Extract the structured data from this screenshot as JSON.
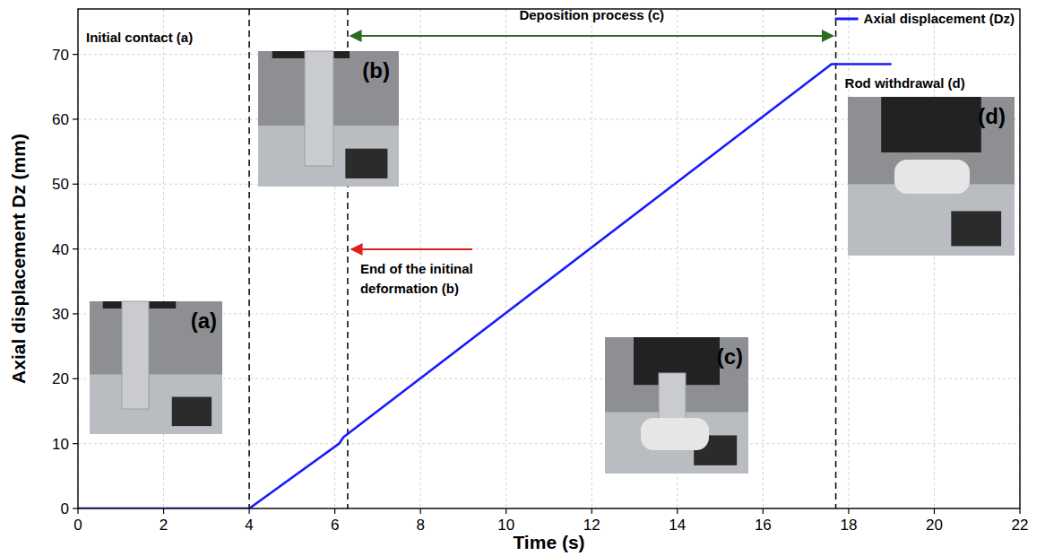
{
  "chart_data": {
    "type": "line",
    "x_label": "Time (s)",
    "y_label": "Axial displacement Dz (mm)",
    "x": [
      0,
      4,
      6.1,
      6.2,
      17.6,
      19
    ],
    "series": [
      {
        "name": "Axial displacement (Dz)",
        "color": "#1a1aff",
        "line_style": "solid",
        "values": [
          0,
          0,
          10,
          11,
          68.5,
          68.5
        ]
      }
    ],
    "xlim": [
      0,
      22
    ],
    "xticks": [
      0,
      2,
      4,
      6,
      8,
      10,
      12,
      14,
      16,
      18,
      20,
      22
    ],
    "ylim": [
      0,
      77
    ],
    "yticks": [
      0,
      10,
      20,
      30,
      40,
      50,
      60,
      70
    ],
    "grid": true,
    "legend": "top-right",
    "reference_lines": [
      4,
      6.3,
      17.7
    ],
    "annotations": [
      {
        "text": "Initial contact (a)"
      },
      {
        "text": "Deposition process (c)"
      },
      {
        "text": "End of the initinal deformation (b)"
      },
      {
        "text": "Rod withdrawal (d)"
      }
    ],
    "insets": [
      {
        "label": "(a)"
      },
      {
        "label": "(b)"
      },
      {
        "label": "(c)"
      },
      {
        "label": "(d)"
      }
    ]
  }
}
